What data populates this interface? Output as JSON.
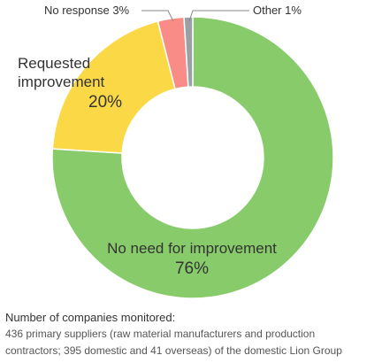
{
  "chart_data": {
    "type": "pie",
    "style": "donut",
    "categories": [
      "No need for improvement",
      "Requested improvement",
      "No response",
      "Other"
    ],
    "values": [
      76,
      20,
      3,
      1
    ],
    "unit": "%",
    "colors": [
      "#88cb6a",
      "#fbd845",
      "#f98c87",
      "#9aa0a6"
    ],
    "labels": {
      "no_need_name": "No need for improvement",
      "no_need_value": "76%",
      "requested_name_line1": "Requested",
      "requested_name_line2": "improvement",
      "requested_value": "20%",
      "no_response": "No response 3%",
      "other": "Other 1%"
    }
  },
  "note": {
    "title": "Number of companies monitored:",
    "line1": "436 primary suppliers (raw material manufacturers and production",
    "line2": "contractors; 395 domestic and 41 overseas) of the domestic Lion Group"
  }
}
